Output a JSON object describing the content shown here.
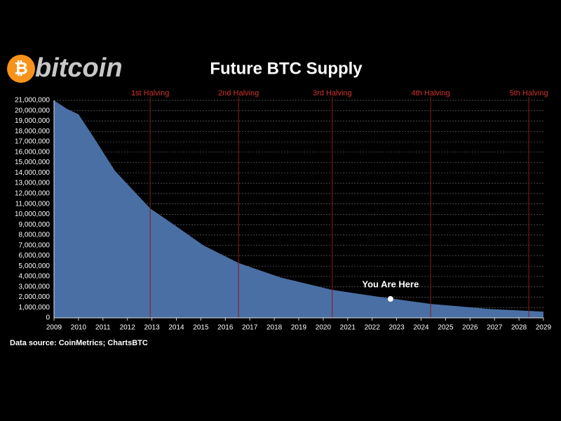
{
  "logo": {
    "symbol": "₿",
    "text": "bitcoin"
  },
  "chart_data": {
    "type": "area",
    "title": "Future BTC Supply",
    "x": [
      2009,
      2009.52,
      2010,
      2010.52,
      2011.49,
      2012.24,
      2012.93,
      2013.96,
      2015.1,
      2016.54,
      2018.25,
      2020.37,
      2022.27,
      2024.39,
      2026.85,
      2029
    ],
    "values": [
      21000000,
      20190000,
      19650000,
      17800000,
      14200000,
      12300000,
      10570000,
      8900000,
      7000000,
      5300000,
      3900000,
      2700000,
      2030000,
      1350000,
      850000,
      600000
    ],
    "color": "#4a6fa5",
    "xlim": [
      2009,
      2029
    ],
    "xticks": [
      2009,
      2010,
      2011,
      2012,
      2013,
      2014,
      2015,
      2016,
      2017,
      2018,
      2019,
      2020,
      2021,
      2022,
      2023,
      2024,
      2025,
      2026,
      2027,
      2028,
      2029
    ],
    "ylim": [
      0,
      21000000
    ],
    "yticks": [
      0,
      {
        "value": 1000000,
        "label": "1,000,000"
      },
      {
        "value": 2000000,
        "label": "2,000,000"
      },
      {
        "value": 3000000,
        "label": "3,000,000"
      },
      {
        "value": 4000000,
        "label": "4,000,000"
      },
      {
        "value": 5000000,
        "label": "5,000,000"
      },
      {
        "value": 6000000,
        "label": "6,000,000"
      },
      {
        "value": 7000000,
        "label": "7,000,000"
      },
      {
        "value": 8000000,
        "label": "8,000,000"
      },
      {
        "value": 9000000,
        "label": "9,000,000"
      },
      {
        "value": 10000000,
        "label": "10,000,000"
      },
      {
        "value": 11000000,
        "label": "11,000,000"
      },
      {
        "value": 12000000,
        "label": "12,000,000"
      },
      {
        "value": 13000000,
        "label": "13,000,000"
      },
      {
        "value": 14000000,
        "label": "14,000,000"
      },
      {
        "value": 15000000,
        "label": "15,000,000"
      },
      {
        "value": 16000000,
        "label": "16,000,000"
      },
      {
        "value": 17000000,
        "label": "17,000,000"
      },
      {
        "value": 18000000,
        "label": "18,000,000"
      },
      {
        "value": 19000000,
        "label": "19,000,000"
      },
      {
        "value": 20000000,
        "label": "20,000,000"
      },
      {
        "value": 21000000,
        "label": "21,000,000"
      }
    ],
    "grid": true,
    "halvings": [
      {
        "label": "1st Halving",
        "x": 2012.93
      },
      {
        "label": "2nd Halving",
        "x": 2016.54
      },
      {
        "label": "3rd Halving",
        "x": 2020.37
      },
      {
        "label": "4th Halving",
        "x": 2024.39
      },
      {
        "label": "5th Halving",
        "x": 2028.4
      }
    ],
    "annotations": [
      {
        "text": "You Are Here",
        "x": 2022.75,
        "y": 1830000
      }
    ],
    "source": "Data source:  CoinMetrics; ChartsBTC"
  }
}
